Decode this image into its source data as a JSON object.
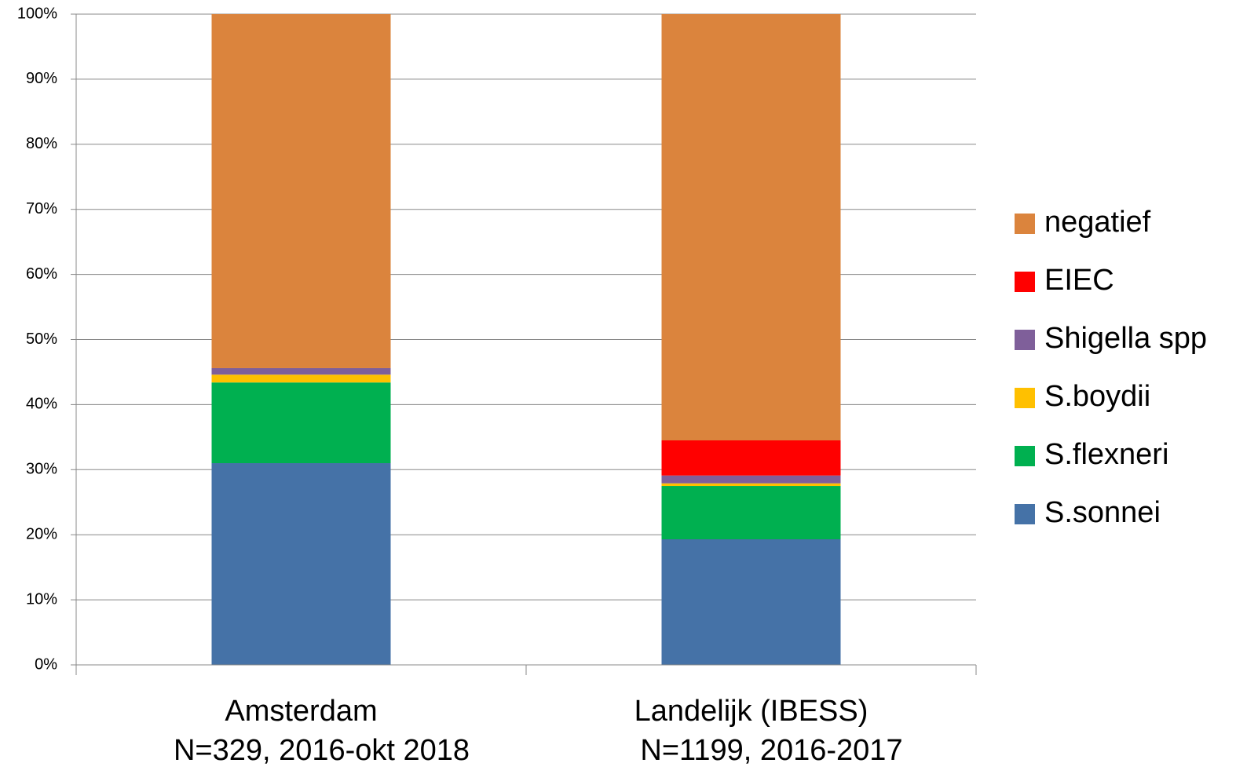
{
  "chart_data": {
    "type": "stacked_bar",
    "categories": [
      [
        "Amsterdam",
        "N=329, 2016-okt 2018"
      ],
      [
        "Landelijk (IBESS)",
        "N=1199, 2016-2017"
      ]
    ],
    "series": [
      {
        "name": "S.sonnei",
        "color": "#4572a7",
        "values": [
          31.0,
          19.3
        ]
      },
      {
        "name": "S.flexneri",
        "color": "#00b050",
        "values": [
          12.4,
          8.2
        ]
      },
      {
        "name": "S.boydii",
        "color": "#ffc000",
        "values": [
          1.2,
          0.4
        ]
      },
      {
        "name": "Shigella spp",
        "color": "#7f5f9a",
        "values": [
          1.0,
          1.2
        ]
      },
      {
        "name": "EIEC",
        "color": "#ff0000",
        "values": [
          0,
          5.4
        ]
      },
      {
        "name": "negatief",
        "color": "#db843d",
        "values": [
          54.4,
          65.5
        ]
      }
    ],
    "ylim": [
      0,
      100
    ],
    "yticks": [
      {
        "value": 0,
        "label": "0%"
      },
      {
        "value": 10,
        "label": "10%"
      },
      {
        "value": 20,
        "label": "20%"
      },
      {
        "value": 30,
        "label": "30%"
      },
      {
        "value": 40,
        "label": "40%"
      },
      {
        "value": 50,
        "label": "50%"
      },
      {
        "value": 60,
        "label": "60%"
      },
      {
        "value": 70,
        "label": "70%"
      },
      {
        "value": 80,
        "label": "80%"
      },
      {
        "value": 90,
        "label": "90%"
      },
      {
        "value": 100,
        "label": "100%"
      }
    ],
    "grid": true,
    "legend": "right"
  }
}
